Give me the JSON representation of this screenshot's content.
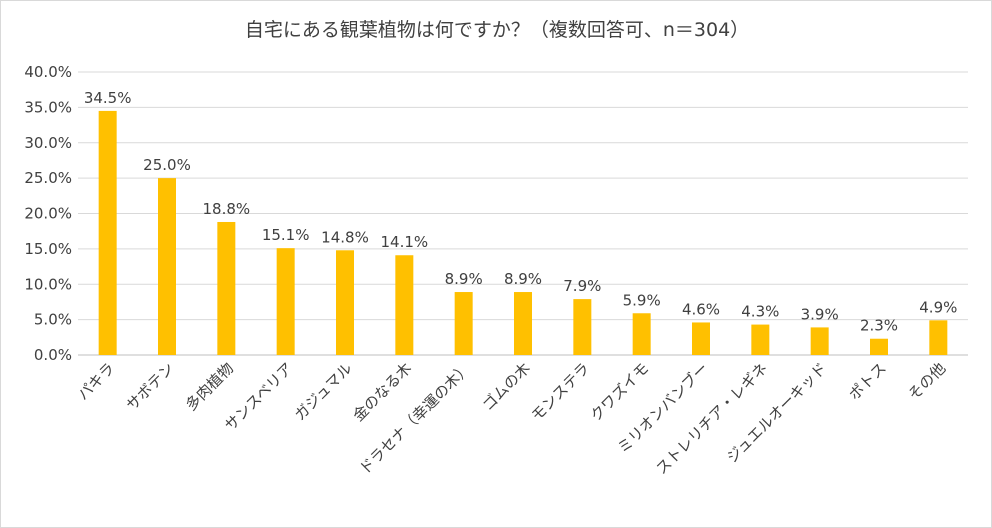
{
  "chart_data": {
    "type": "bar",
    "title": "自宅にある観葉植物は何ですか？（複数回答可、n＝304）",
    "categories": [
      "パキラ",
      "サボテン",
      "多肉植物",
      "サンスベリア",
      "ガジュマル",
      "金のなる木",
      "ドラセナ（幸運の木）",
      "ゴムの木",
      "モンステラ",
      "クワズイモ",
      "ミリオンバンブー",
      "ストレリチア・レギネ",
      "ジュエルオーキッド",
      "ポトス",
      "その他"
    ],
    "values": [
      34.5,
      25.0,
      18.8,
      15.1,
      14.8,
      14.1,
      8.9,
      8.9,
      7.9,
      5.9,
      4.6,
      4.3,
      3.9,
      2.3,
      4.9
    ],
    "data_labels": [
      "34.5%",
      "25.0%",
      "18.8%",
      "15.1%",
      "14.8%",
      "14.1%",
      "8.9%",
      "8.9%",
      "7.9%",
      "5.9%",
      "4.6%",
      "4.3%",
      "3.9%",
      "2.3%",
      "4.9%"
    ],
    "ylim": [
      0,
      40
    ],
    "yticks": [
      "0.0%",
      "5.0%",
      "10.0%",
      "15.0%",
      "20.0%",
      "25.0%",
      "30.0%",
      "35.0%",
      "40.0%"
    ],
    "grid": true,
    "bar_color": "#ffc000",
    "xlabel": "",
    "ylabel": ""
  }
}
